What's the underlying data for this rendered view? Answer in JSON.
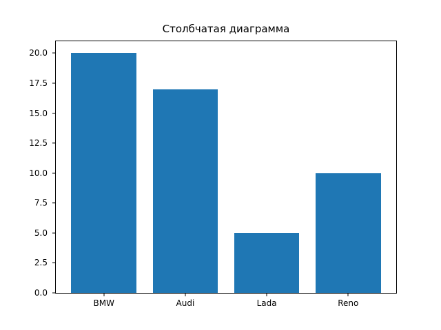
{
  "chart_data": {
    "type": "bar",
    "title": "Столбчатая диаграмма",
    "categories": [
      "BMW",
      "Audi",
      "Lada",
      "Reno"
    ],
    "values": [
      20,
      17,
      5,
      10
    ],
    "xlabel": "",
    "ylabel": "",
    "ylim": [
      0,
      21
    ],
    "xlim": [
      -0.59,
      3.59
    ],
    "yticks": [
      0.0,
      2.5,
      5.0,
      7.5,
      10.0,
      12.5,
      15.0,
      17.5,
      20.0
    ],
    "ytick_labels": [
      "0.0",
      "2.5",
      "5.0",
      "7.5",
      "10.0",
      "12.5",
      "15.0",
      "17.5",
      "20.0"
    ],
    "bar_width": 0.8,
    "bar_color": "#1f77b4",
    "grid": false,
    "legend": null
  },
  "colors": {
    "background": "#ffffff",
    "axis": "#000000",
    "text": "#000000",
    "bar": "#1f77b4"
  }
}
